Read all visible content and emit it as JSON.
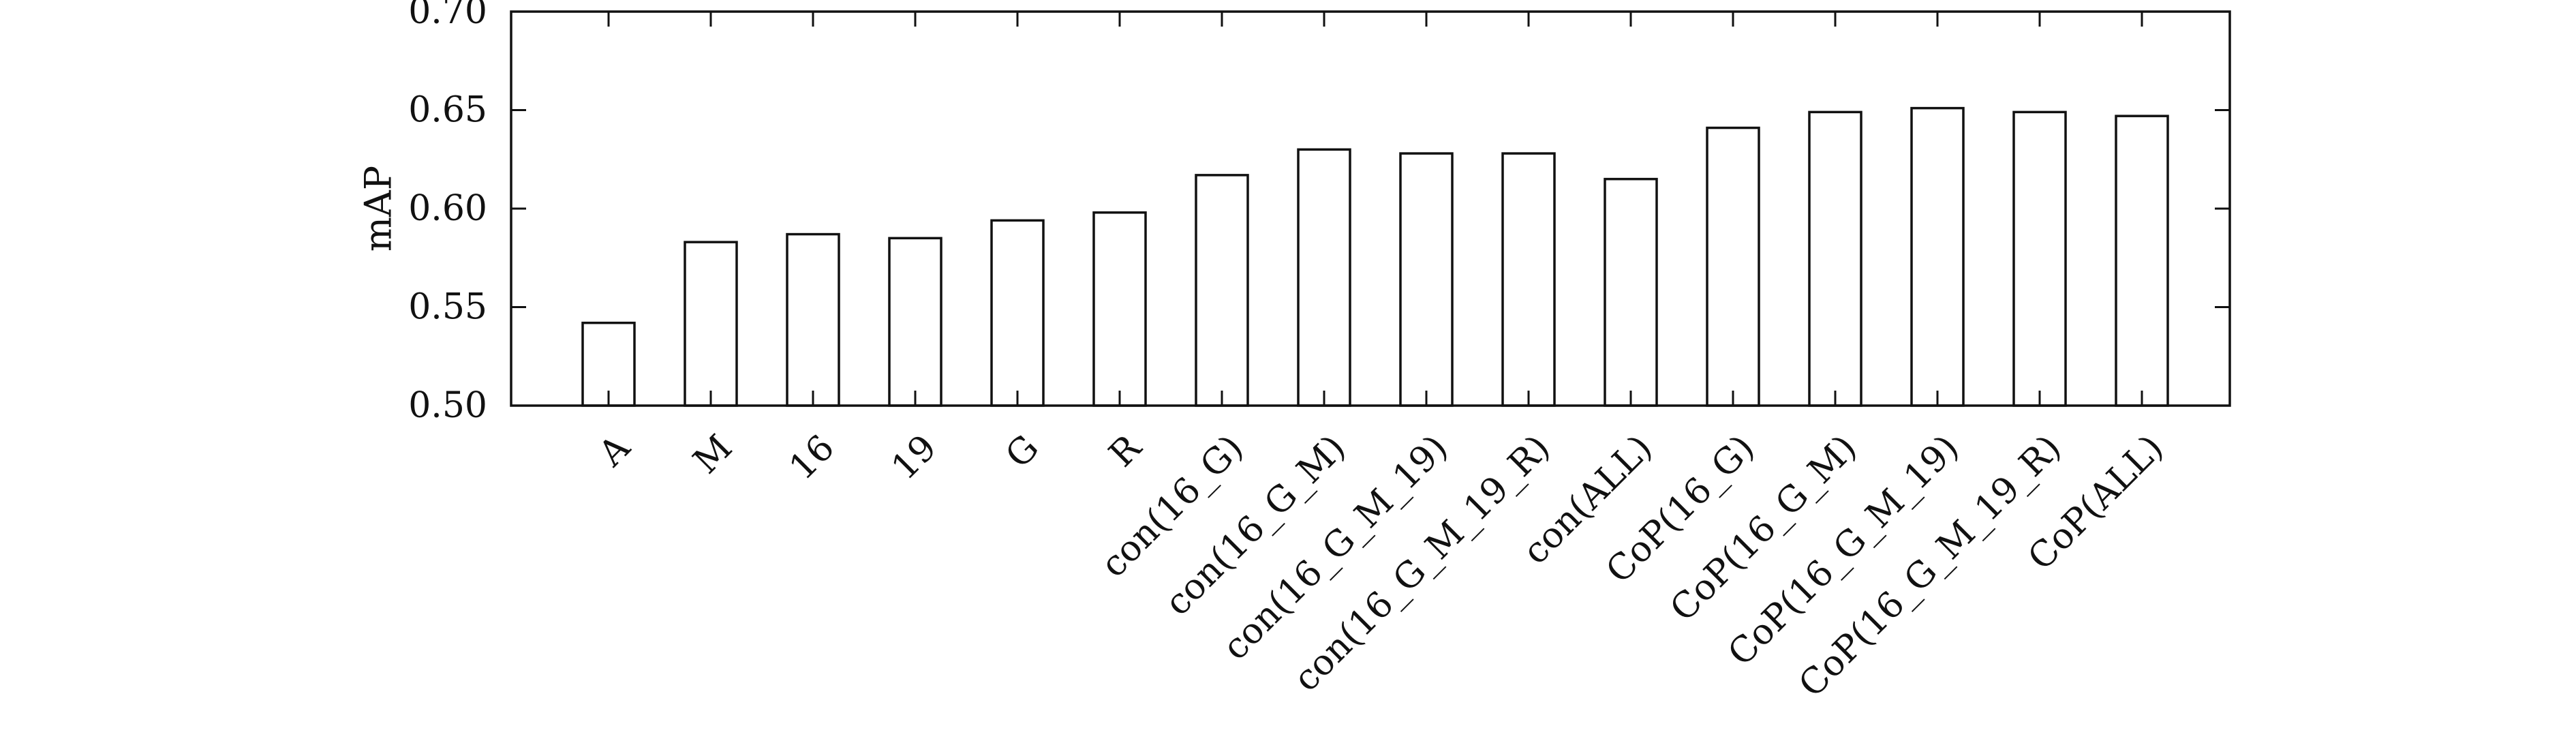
{
  "chart_data": {
    "type": "bar",
    "title": "",
    "xlabel": "",
    "ylabel": "mAP",
    "ylim": [
      0.5,
      0.7
    ],
    "yticks": [
      "0.50",
      "0.55",
      "0.60",
      "0.65",
      "0.70"
    ],
    "grid": false,
    "legend": "none",
    "categories": [
      "A",
      "M",
      "16",
      "19",
      "G",
      "R",
      "con(16_G)",
      "con(16_G_M)",
      "con(16_G_M_19)",
      "con(16_G_M_19_R)",
      "con(ALL)",
      "CoP(16_G)",
      "CoP(16_G_M)",
      "CoP(16_G_M_19)",
      "CoP(16_G_M_19_R)",
      "CoP(ALL)"
    ],
    "values": [
      0.542,
      0.583,
      0.587,
      0.585,
      0.594,
      0.598,
      0.617,
      0.63,
      0.628,
      0.628,
      0.615,
      0.641,
      0.649,
      0.651,
      0.649,
      0.647
    ],
    "colors": {
      "bar_fill": "#ffffff",
      "bar_stroke": "#111111",
      "axis": "#111111"
    }
  }
}
